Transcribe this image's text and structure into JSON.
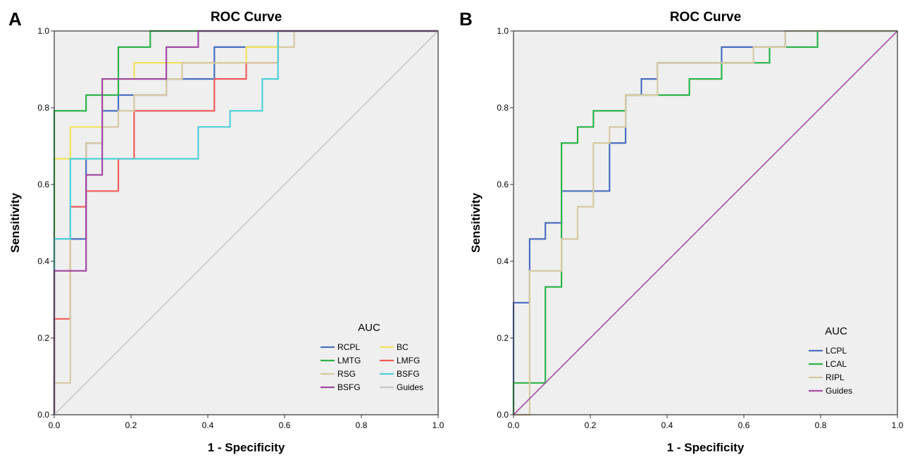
{
  "chart_data": [
    {
      "type": "line",
      "panel_label": "A",
      "title": "ROC Curve",
      "xlabel": "1 - Specificity",
      "ylabel": "Sensitivity",
      "xlim": [
        0,
        1
      ],
      "ylim": [
        0,
        1
      ],
      "xticks": [
        "0.0",
        "0.2",
        "0.4",
        "0.6",
        "0.8",
        "1.0"
      ],
      "yticks": [
        "0.0",
        "0.2",
        "0.4",
        "0.6",
        "0.8",
        "1.0"
      ],
      "background": "#efefef",
      "grid": false,
      "legend": {
        "title": "AUC",
        "position": "bottom-right",
        "columns": 2
      },
      "series": [
        {
          "name": "RCPL",
          "color": "#4a6fbf",
          "x": [
            0,
            0,
            0.083,
            0.083,
            0.125,
            0.125,
            0.167,
            0.167,
            0.292,
            0.292,
            0.417,
            0.417,
            0.583,
            0.583,
            1.0
          ],
          "y": [
            0,
            0.458,
            0.458,
            0.708,
            0.708,
            0.792,
            0.792,
            0.833,
            0.833,
            0.875,
            0.875,
            0.958,
            0.958,
            1.0,
            1.0
          ]
        },
        {
          "name": "BC",
          "color": "#f0e35a",
          "x": [
            0,
            0,
            0.042,
            0.042,
            0.125,
            0.125,
            0.208,
            0.208,
            0.5,
            0.5,
            0.583,
            0.583,
            1.0
          ],
          "y": [
            0,
            0.667,
            0.667,
            0.75,
            0.75,
            0.875,
            0.875,
            0.917,
            0.917,
            0.958,
            0.958,
            1.0,
            1.0
          ]
        },
        {
          "name": "LMTG",
          "color": "#2db34a",
          "x": [
            0,
            0,
            0.083,
            0.083,
            0.167,
            0.167,
            0.25,
            0.25,
            1.0
          ],
          "y": [
            0,
            0.792,
            0.792,
            0.833,
            0.833,
            0.958,
            0.958,
            1.0,
            1.0
          ]
        },
        {
          "name": "LMFG",
          "color": "#f25a5a",
          "x": [
            0,
            0,
            0.042,
            0.042,
            0.083,
            0.083,
            0.167,
            0.167,
            0.208,
            0.208,
            0.417,
            0.417,
            0.5,
            0.5,
            0.583,
            0.583,
            1.0
          ],
          "y": [
            0,
            0.25,
            0.25,
            0.542,
            0.542,
            0.583,
            0.583,
            0.667,
            0.667,
            0.792,
            0.792,
            0.875,
            0.875,
            0.917,
            0.917,
            1.0,
            1.0
          ]
        },
        {
          "name": "RSG",
          "color": "#d6c9a0",
          "x": [
            0,
            0,
            0.042,
            0.042,
            0.083,
            0.083,
            0.125,
            0.125,
            0.167,
            0.167,
            0.208,
            0.208,
            0.292,
            0.292,
            0.333,
            0.333,
            0.583,
            0.583,
            0.625,
            0.625,
            1.0
          ],
          "y": [
            0,
            0.083,
            0.083,
            0.667,
            0.667,
            0.708,
            0.708,
            0.75,
            0.75,
            0.792,
            0.792,
            0.833,
            0.833,
            0.875,
            0.875,
            0.917,
            0.917,
            0.958,
            0.958,
            1.0,
            1.0
          ]
        },
        {
          "name": "BSFG",
          "color": "#4fd0d8",
          "x": [
            0,
            0,
            0.042,
            0.042,
            0.375,
            0.375,
            0.458,
            0.458,
            0.542,
            0.542,
            0.583,
            0.583,
            1.0
          ],
          "y": [
            0,
            0.458,
            0.458,
            0.667,
            0.667,
            0.75,
            0.75,
            0.792,
            0.792,
            0.875,
            0.875,
            1.0,
            1.0
          ]
        },
        {
          "name": "BSFG",
          "color": "#a04aa0",
          "x": [
            0,
            0,
            0.083,
            0.083,
            0.125,
            0.125,
            0.292,
            0.292,
            0.375,
            0.375,
            1.0
          ],
          "y": [
            0,
            0.375,
            0.375,
            0.625,
            0.625,
            0.875,
            0.875,
            0.958,
            0.958,
            1.0,
            1.0
          ]
        },
        {
          "name": "Guides",
          "color": "#c8c8c8",
          "x": [
            0,
            1
          ],
          "y": [
            0,
            1
          ]
        }
      ]
    },
    {
      "type": "line",
      "panel_label": "B",
      "title": "ROC Curve",
      "xlabel": "1 - Specificity",
      "ylabel": "Sensitivity",
      "xlim": [
        0,
        1
      ],
      "ylim": [
        0,
        1
      ],
      "xticks": [
        "0.0",
        "0.2",
        "0.4",
        "0.6",
        "0.8",
        "1.0"
      ],
      "yticks": [
        "0.0",
        "0.2",
        "0.4",
        "0.6",
        "0.8",
        "1.0"
      ],
      "background": "#efefef",
      "grid": false,
      "legend": {
        "title": "AUC",
        "position": "bottom-right",
        "columns": 1
      },
      "series": [
        {
          "name": "LCPL",
          "color": "#4a6fbf",
          "x": [
            0,
            0,
            0.042,
            0.042,
            0.083,
            0.083,
            0.125,
            0.125,
            0.25,
            0.25,
            0.292,
            0.292,
            0.333,
            0.333,
            0.375,
            0.375,
            0.542,
            0.542,
            0.625,
            0.625,
            0.708,
            0.708,
            1.0
          ],
          "y": [
            0,
            0.292,
            0.292,
            0.458,
            0.458,
            0.5,
            0.5,
            0.583,
            0.583,
            0.708,
            0.708,
            0.833,
            0.833,
            0.875,
            0.875,
            0.917,
            0.917,
            0.958,
            0.958,
            0.958,
            0.958,
            1.0,
            1.0
          ]
        },
        {
          "name": "LCAL",
          "color": "#2db34a",
          "x": [
            0,
            0,
            0.083,
            0.083,
            0.125,
            0.125,
            0.167,
            0.167,
            0.208,
            0.208,
            0.292,
            0.292,
            0.375,
            0.375,
            0.458,
            0.458,
            0.542,
            0.542,
            0.625,
            0.625,
            0.667,
            0.667,
            0.792,
            0.792,
            1.0
          ],
          "y": [
            0,
            0.083,
            0.083,
            0.333,
            0.333,
            0.708,
            0.708,
            0.75,
            0.75,
            0.792,
            0.792,
            0.833,
            0.833,
            0.833,
            0.833,
            0.875,
            0.875,
            0.917,
            0.917,
            0.917,
            0.917,
            0.958,
            0.958,
            1.0,
            1.0
          ]
        },
        {
          "name": "RIPL",
          "color": "#d6c9a0",
          "x": [
            0,
            0.042,
            0.042,
            0.125,
            0.125,
            0.167,
            0.167,
            0.208,
            0.208,
            0.25,
            0.25,
            0.292,
            0.292,
            0.375,
            0.375,
            0.625,
            0.625,
            0.708,
            0.708,
            1.0
          ],
          "y": [
            0,
            0,
            0.375,
            0.375,
            0.458,
            0.458,
            0.542,
            0.542,
            0.708,
            0.708,
            0.75,
            0.75,
            0.833,
            0.833,
            0.917,
            0.917,
            0.958,
            0.958,
            1.0,
            1.0
          ]
        },
        {
          "name": "Guides",
          "color": "#a64ca6",
          "x": [
            0,
            1
          ],
          "y": [
            0,
            1
          ]
        }
      ]
    }
  ]
}
